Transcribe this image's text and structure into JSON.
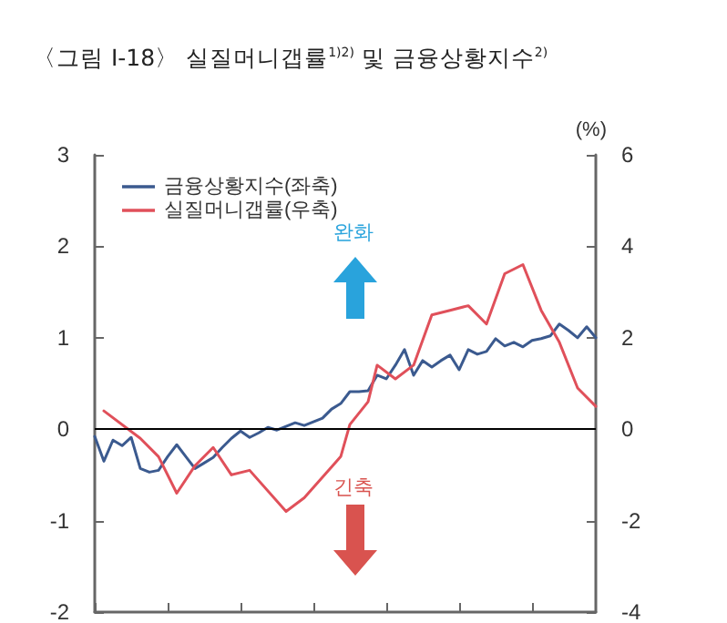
{
  "chart_data": {
    "type": "line",
    "title": "〈그림 Ⅰ-18〉 실질머니갭률$^{1)2)}$ 및 금융상황지수$^{2)}$",
    "y2label": "(%)",
    "categories": [
      null,
      null,
      null,
      null,
      null,
      null,
      null,
      null,
      null,
      null,
      null,
      null,
      null,
      null,
      null,
      null,
      null,
      null,
      null,
      null,
      null,
      null,
      null,
      null,
      null,
      null,
      null,
      null,
      null,
      null,
      null,
      null,
      null,
      null,
      null,
      null,
      null,
      null,
      null,
      null,
      null,
      null,
      null,
      null,
      null,
      null,
      null,
      null,
      null,
      null,
      null,
      null,
      null,
      null,
      null,
      null
    ],
    "series": [
      {
        "name": "금융상황지수(좌축)",
        "color": "#3b5a8f",
        "values": [
          -0.08,
          -0.35,
          -0.12,
          -0.18,
          -0.09,
          -0.43,
          -0.47,
          -0.45,
          -0.3,
          -0.17,
          -0.3,
          -0.43,
          -0.37,
          -0.31,
          -0.2,
          -0.1,
          -0.02,
          -0.09,
          -0.04,
          0.02,
          -0.01,
          0.03,
          0.07,
          0.04,
          0.08,
          0.12,
          0.22,
          0.28,
          0.41,
          0.41,
          0.42,
          0.59,
          0.55,
          0.7,
          0.87,
          0.59,
          0.75,
          0.68,
          0.75,
          0.81,
          0.65,
          0.87,
          0.82,
          0.85,
          0.99,
          0.91,
          0.95,
          0.9,
          0.97,
          0.99,
          1.02,
          1.15,
          1.08,
          1.0,
          1.12,
          1.0
        ]
      },
      {
        "name": "실질머니갭률(우축)",
        "color": "#e0505a",
        "axis": "y2",
        "values": [
          null,
          0.4,
          null,
          null,
          null,
          -0.2,
          null,
          -0.6,
          null,
          -1.4,
          null,
          -0.8,
          null,
          -0.4,
          null,
          -1.0,
          null,
          -0.9,
          null,
          null,
          null,
          -1.8,
          null,
          -1.5,
          null,
          null,
          null,
          -0.6,
          0.1,
          null,
          0.6,
          1.4,
          null,
          1.1,
          null,
          1.4,
          null,
          2.5,
          null,
          2.6,
          null,
          2.7,
          null,
          2.3,
          null,
          3.4,
          null,
          3.6,
          null,
          2.6,
          null,
          1.9,
          null,
          0.9,
          null,
          0.5
        ]
      }
    ],
    "ylim": [
      -2,
      3
    ],
    "yticks": [
      -2,
      -1,
      0,
      1,
      2,
      3
    ],
    "y2lim": [
      -4,
      6
    ],
    "y2ticks": [
      -4,
      -2,
      0,
      2,
      4,
      6
    ],
    "ref_lines": [
      {
        "axis": "y",
        "value": 0,
        "color": "#000000"
      }
    ],
    "annotations": [
      "완화",
      "긴축"
    ],
    "grid": false,
    "legend": "top left",
    "tick_labels": "y",
    "line_style": "solid"
  }
}
